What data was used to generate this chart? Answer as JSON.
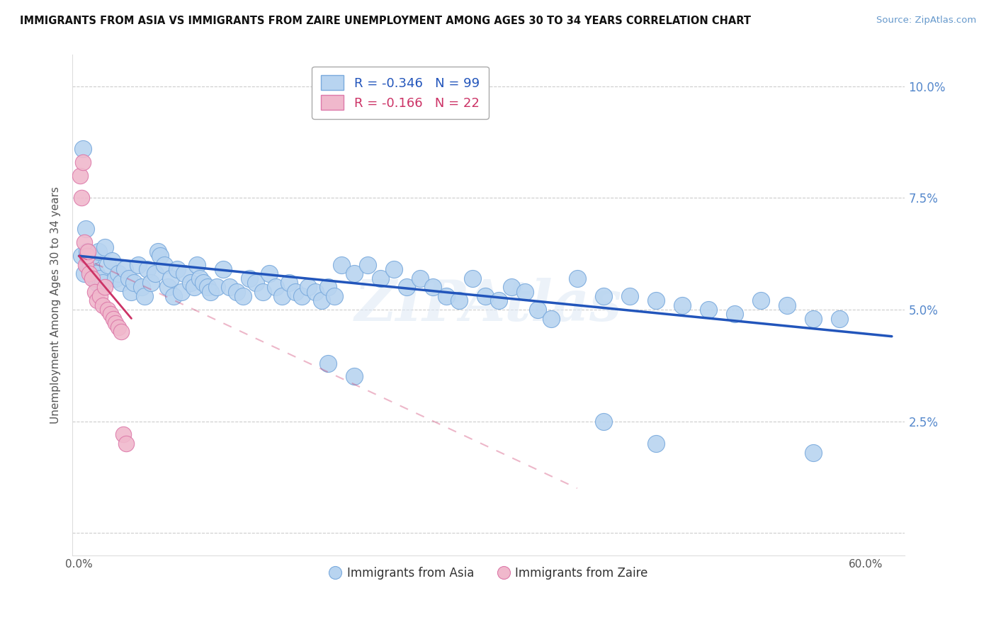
{
  "title": "IMMIGRANTS FROM ASIA VS IMMIGRANTS FROM ZAIRE UNEMPLOYMENT AMONG AGES 30 TO 34 YEARS CORRELATION CHART",
  "source": "Source: ZipAtlas.com",
  "ylabel_label": "Unemployment Among Ages 30 to 34 years",
  "xlim": [
    -0.005,
    0.63
  ],
  "ylim": [
    -0.005,
    0.107
  ],
  "legend1_color": "#b8d4f0",
  "legend2_color": "#f0b8cc",
  "legend1_edge": "#7aaadd",
  "legend2_edge": "#dd7aaa",
  "trendline1_color": "#2255bb",
  "trendline2_color": "#cc3366",
  "watermark": "ZIPAtlas",
  "background_color": "#ffffff",
  "grid_color": "#cccccc",
  "title_color": "#111111",
  "source_color": "#6699cc",
  "ylabel_color": "#555555",
  "tick_color": "#555555",
  "right_tick_color": "#5588cc",
  "legend_r1_color": "#2255bb",
  "legend_r2_color": "#cc3366",
  "legend_n_color": "#333333",
  "asia_x": [
    0.003,
    0.002,
    0.004,
    0.005,
    0.006,
    0.007,
    0.008,
    0.009,
    0.01,
    0.012,
    0.013,
    0.014,
    0.015,
    0.016,
    0.018,
    0.02,
    0.022,
    0.025,
    0.028,
    0.03,
    0.032,
    0.035,
    0.038,
    0.04,
    0.042,
    0.045,
    0.048,
    0.05,
    0.052,
    0.055,
    0.058,
    0.06,
    0.062,
    0.065,
    0.068,
    0.07,
    0.072,
    0.075,
    0.078,
    0.08,
    0.085,
    0.088,
    0.09,
    0.092,
    0.095,
    0.098,
    0.1,
    0.105,
    0.11,
    0.115,
    0.12,
    0.125,
    0.13,
    0.135,
    0.14,
    0.145,
    0.15,
    0.155,
    0.16,
    0.165,
    0.17,
    0.175,
    0.18,
    0.185,
    0.19,
    0.195,
    0.2,
    0.21,
    0.22,
    0.23,
    0.24,
    0.25,
    0.26,
    0.27,
    0.28,
    0.29,
    0.3,
    0.31,
    0.32,
    0.33,
    0.34,
    0.35,
    0.36,
    0.38,
    0.4,
    0.42,
    0.44,
    0.46,
    0.48,
    0.5,
    0.52,
    0.54,
    0.56,
    0.58,
    0.19,
    0.21,
    0.4,
    0.44,
    0.56
  ],
  "asia_y": [
    0.086,
    0.062,
    0.058,
    0.068,
    0.063,
    0.06,
    0.059,
    0.06,
    0.062,
    0.057,
    0.058,
    0.056,
    0.063,
    0.057,
    0.056,
    0.064,
    0.06,
    0.061,
    0.057,
    0.058,
    0.056,
    0.059,
    0.057,
    0.054,
    0.056,
    0.06,
    0.055,
    0.053,
    0.059,
    0.056,
    0.058,
    0.063,
    0.062,
    0.06,
    0.055,
    0.057,
    0.053,
    0.059,
    0.054,
    0.058,
    0.056,
    0.055,
    0.06,
    0.057,
    0.056,
    0.055,
    0.054,
    0.055,
    0.059,
    0.055,
    0.054,
    0.053,
    0.057,
    0.056,
    0.054,
    0.058,
    0.055,
    0.053,
    0.056,
    0.054,
    0.053,
    0.055,
    0.054,
    0.052,
    0.055,
    0.053,
    0.06,
    0.058,
    0.06,
    0.057,
    0.059,
    0.055,
    0.057,
    0.055,
    0.053,
    0.052,
    0.057,
    0.053,
    0.052,
    0.055,
    0.054,
    0.05,
    0.048,
    0.057,
    0.053,
    0.053,
    0.052,
    0.051,
    0.05,
    0.049,
    0.052,
    0.051,
    0.048,
    0.048,
    0.038,
    0.035,
    0.025,
    0.02,
    0.018
  ],
  "asia_sizes": [
    900,
    400,
    350,
    350,
    350,
    350,
    350,
    350,
    350,
    350,
    350,
    350,
    350,
    350,
    350,
    350,
    350,
    350,
    350,
    350,
    350,
    350,
    350,
    350,
    350,
    350,
    350,
    350,
    350,
    350,
    350,
    350,
    350,
    350,
    350,
    350,
    350,
    350,
    350,
    350,
    350,
    350,
    350,
    350,
    350,
    350,
    350,
    350,
    350,
    350,
    350,
    350,
    350,
    350,
    350,
    350,
    350,
    350,
    350,
    350,
    350,
    350,
    350,
    350,
    350,
    350,
    350,
    350,
    350,
    350,
    350,
    350,
    350,
    350,
    350,
    350,
    350,
    350,
    350,
    350,
    350,
    350,
    350,
    350,
    350,
    350,
    350,
    350,
    350,
    350,
    350,
    350,
    350,
    350,
    350,
    350,
    350,
    350,
    350
  ],
  "zaire_x": [
    0.001,
    0.002,
    0.003,
    0.004,
    0.005,
    0.006,
    0.007,
    0.008,
    0.01,
    0.012,
    0.014,
    0.016,
    0.018,
    0.02,
    0.022,
    0.024,
    0.026,
    0.028,
    0.03,
    0.032,
    0.034,
    0.036
  ],
  "zaire_y": [
    0.08,
    0.075,
    0.083,
    0.065,
    0.06,
    0.062,
    0.063,
    0.058,
    0.057,
    0.054,
    0.052,
    0.053,
    0.051,
    0.055,
    0.05,
    0.049,
    0.048,
    0.047,
    0.046,
    0.045,
    0.022,
    0.02
  ],
  "trendline_asia_x0": 0.0,
  "trendline_asia_x1": 0.62,
  "trendline_asia_y0": 0.062,
  "trendline_asia_y1": 0.044,
  "trendline_zaire_solid_x0": 0.0,
  "trendline_zaire_solid_x1": 0.04,
  "trendline_zaire_solid_y0": 0.062,
  "trendline_zaire_solid_y1": 0.048,
  "trendline_zaire_dash_x0": 0.0,
  "trendline_zaire_dash_x1": 0.38,
  "trendline_zaire_dash_y0": 0.062,
  "trendline_zaire_dash_y1": 0.01
}
